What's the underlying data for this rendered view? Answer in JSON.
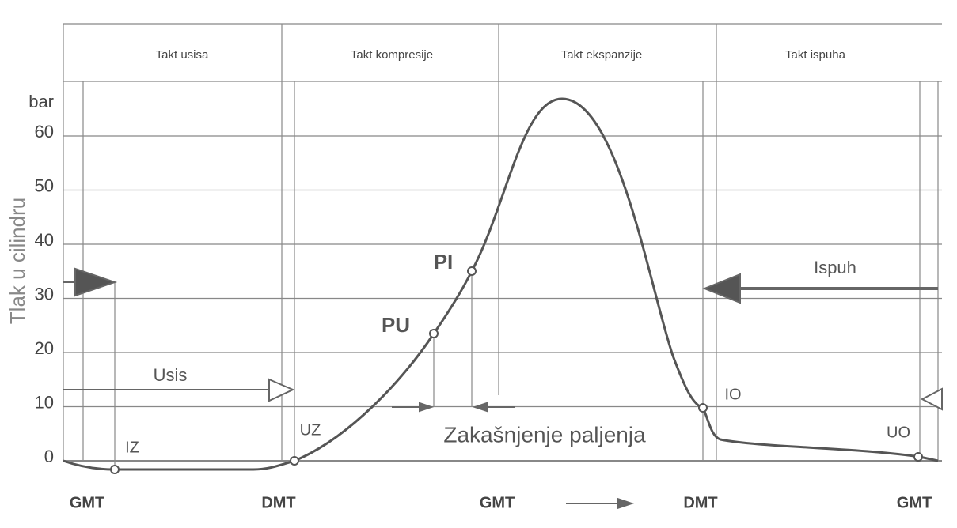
{
  "header": {
    "strokes": [
      "Takt usisa",
      "Takt kompresije",
      "Takt ekspanzije",
      "Takt ispuha"
    ]
  },
  "axis": {
    "unit": "bar",
    "label": "Tlak u cilindru",
    "ticks": [
      60,
      50,
      40,
      30,
      20,
      10,
      0
    ]
  },
  "labels": {
    "usis": "Usis",
    "ispuh": "Ispuh",
    "pi": "PI",
    "pu": "PU",
    "iz": "IZ",
    "uz": "UZ",
    "io": "IO",
    "uo": "UO",
    "delay": "Zakašnjenje paljenja"
  },
  "footer": [
    "GMT",
    "DMT",
    "GMT",
    "DMT",
    "GMT"
  ]
}
